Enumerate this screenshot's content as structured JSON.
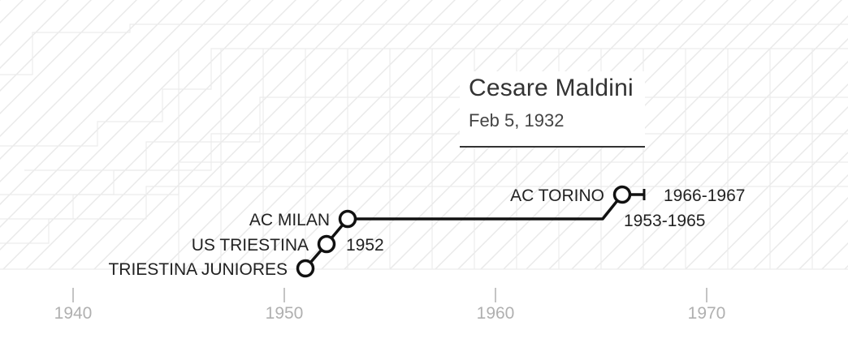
{
  "player": {
    "name": "Cesare Maldini",
    "birth_date": "Feb 5, 1932"
  },
  "colors": {
    "line": "#111111",
    "node_fill": "#ffffff",
    "tick": "#b0b0b0",
    "background_pattern": "#e6e6e6"
  },
  "chart_data": {
    "type": "line",
    "title": "Cesare Maldini",
    "subtitle": "Feb 5, 1932",
    "xlim": [
      1940,
      1975
    ],
    "x_ticks": [
      1940,
      1950,
      1960,
      1970
    ],
    "x_tick_labels": [
      "1940",
      "1950",
      "1960",
      "1970"
    ],
    "grid": false,
    "career": [
      {
        "club": "TRIESTINA JUNIORES",
        "start": 1951,
        "end": 1951,
        "years_label": ""
      },
      {
        "club": "US TRIESTINA",
        "start": 1952,
        "end": 1952,
        "years_label": "1952"
      },
      {
        "club": "AC MILAN",
        "start": 1953,
        "end": 1965,
        "years_label": "1953-1965"
      },
      {
        "club": "AC TORINO",
        "start": 1966,
        "end": 1967,
        "years_label": "1966-1967"
      }
    ]
  }
}
